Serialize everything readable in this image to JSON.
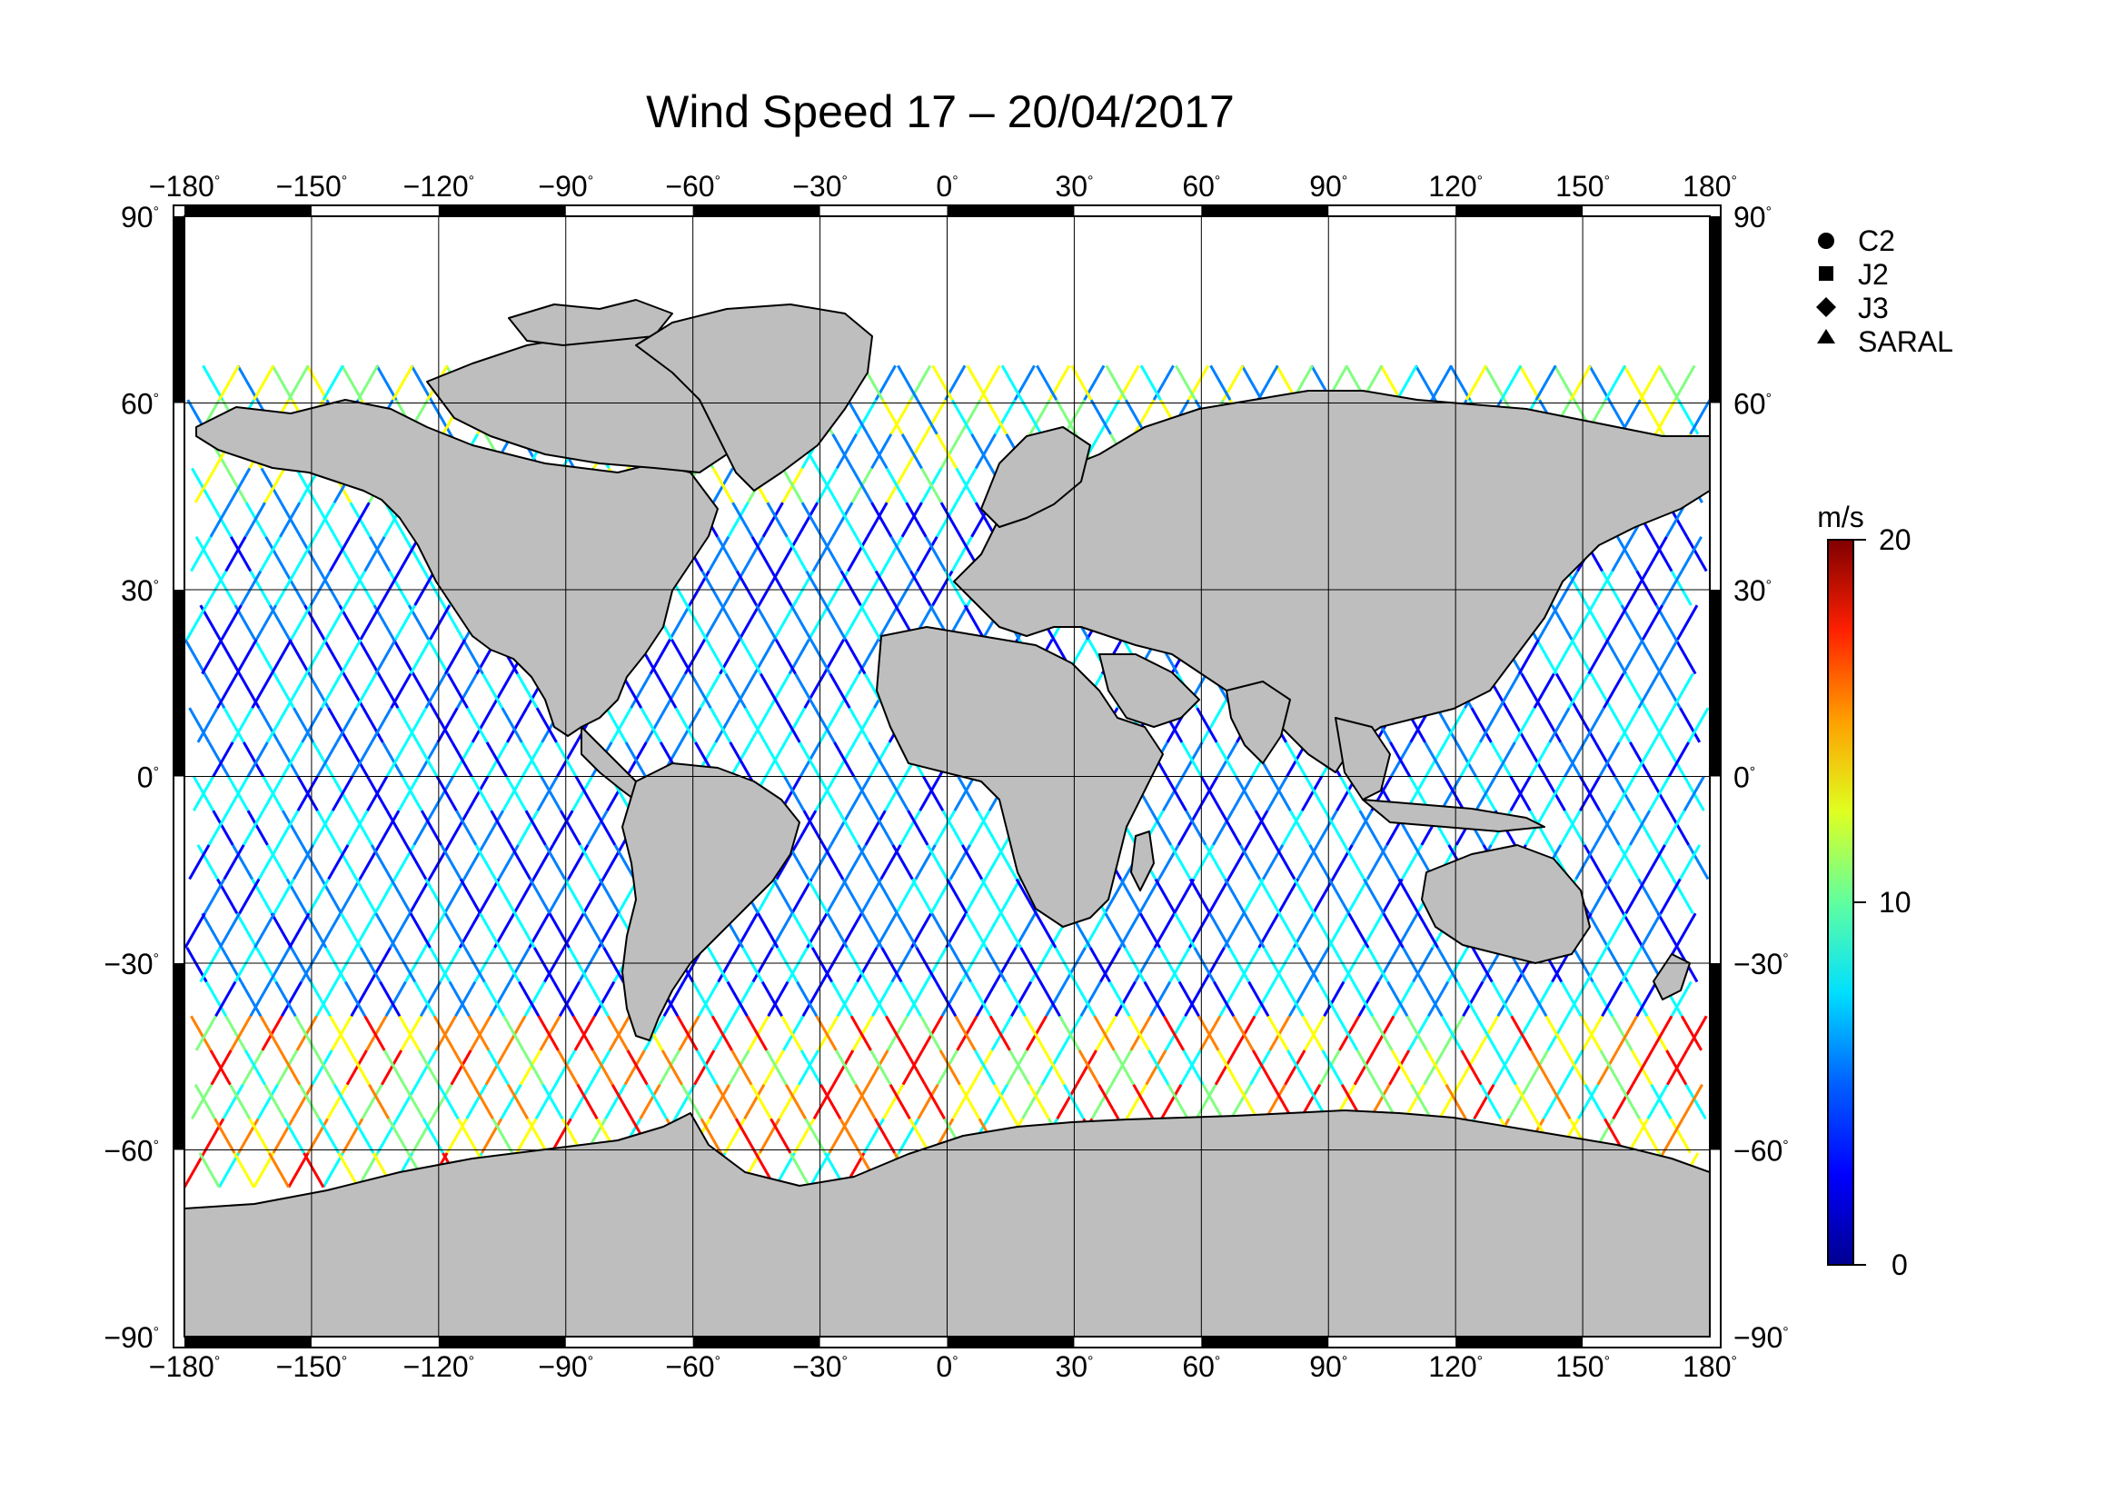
{
  "title": "Wind Speed 17 – 20/04/2017",
  "map": {
    "lon_range": [
      -180,
      180
    ],
    "lat_range": [
      -90,
      90
    ],
    "lon_ticks": [
      "−180",
      "−150",
      "−120",
      "−90",
      "−60",
      "−30",
      "0",
      "30",
      "60",
      "90",
      "120",
      "150",
      "180"
    ],
    "lat_ticks": [
      "90",
      "60",
      "30",
      "0",
      "−30",
      "−60",
      "−90"
    ],
    "degree_symbol": "°",
    "grid": true,
    "land_color": "#bebebe",
    "coast_color": "#000000"
  },
  "legend": {
    "items": [
      {
        "label": "C2",
        "marker": "circle"
      },
      {
        "label": "J2",
        "marker": "square"
      },
      {
        "label": "J3",
        "marker": "diamond"
      },
      {
        "label": "SARAL",
        "marker": "triangle"
      }
    ]
  },
  "colorbar": {
    "unit": "m/s",
    "min_label": "0",
    "mid_label": "10",
    "max_label": "20",
    "range": [
      0,
      20
    ],
    "colors": [
      "#00008f",
      "#0000ff",
      "#0080ff",
      "#00ffff",
      "#80ff80",
      "#ffff00",
      "#ff8000",
      "#ff0000",
      "#800000"
    ]
  }
}
